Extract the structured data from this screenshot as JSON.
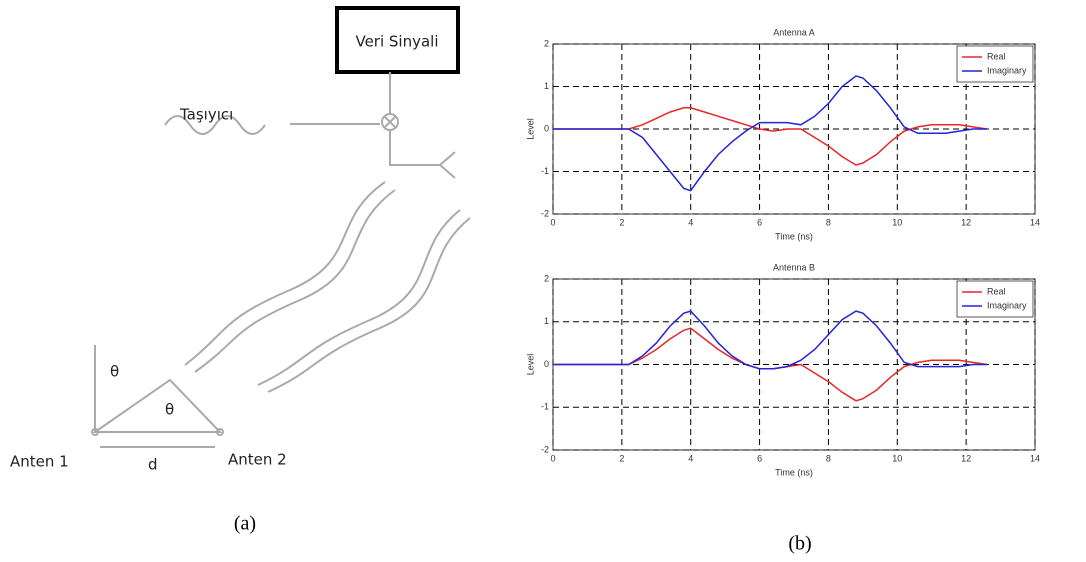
{
  "diagram": {
    "box_label": "Veri Sinyali",
    "carrier_label": "Taşıyıcı",
    "angle_labels": [
      "θ",
      "θ"
    ],
    "antenna_labels": [
      "Anten 1",
      "Anten 2"
    ],
    "distance_label": "d"
  },
  "captions": [
    "(a)",
    "(b)"
  ],
  "chart_data": [
    {
      "type": "line",
      "title": "Antenna A",
      "x_label": "Time (ns)",
      "y_label": "Level",
      "x": [
        0,
        2.2,
        2.6,
        3.0,
        3.4,
        3.8,
        4.0,
        4.4,
        4.8,
        5.2,
        5.6,
        6.0,
        6.4,
        6.8,
        7.2,
        7.6,
        8.0,
        8.4,
        8.8,
        9.0,
        9.4,
        9.8,
        10.2,
        10.6,
        11.0,
        11.4,
        11.8,
        12.2,
        12.6
      ],
      "series": [
        {
          "name": "Real",
          "color": "#e8262a",
          "values": [
            0,
            0,
            0.1,
            0.25,
            0.4,
            0.5,
            0.5,
            0.4,
            0.3,
            0.2,
            0.1,
            0,
            -0.05,
            0,
            0,
            -0.2,
            -0.4,
            -0.65,
            -0.85,
            -0.8,
            -0.6,
            -0.3,
            -0.05,
            0.05,
            0.1,
            0.1,
            0.1,
            0.05,
            0
          ]
        },
        {
          "name": "Imaginary",
          "color": "#2424d8",
          "values": [
            0,
            0,
            -0.2,
            -0.6,
            -1.0,
            -1.4,
            -1.45,
            -1.0,
            -0.6,
            -0.3,
            -0.05,
            0.15,
            0.15,
            0.15,
            0.1,
            0.3,
            0.6,
            1.0,
            1.25,
            1.2,
            0.9,
            0.5,
            0.05,
            -0.1,
            -0.1,
            -0.1,
            -0.05,
            0,
            0
          ]
        }
      ],
      "xlim": [
        0,
        14
      ],
      "xticks": [
        0,
        2,
        4,
        6,
        8,
        10,
        12,
        14
      ],
      "ylim": [
        -2,
        2
      ],
      "yticks": [
        -2,
        -1,
        0,
        1,
        2
      ],
      "grid": true,
      "legend": "upper right"
    },
    {
      "type": "line",
      "title": "Antenna B",
      "x_label": "Time (ns)",
      "y_label": "Level",
      "x": [
        0,
        2.2,
        2.6,
        3.0,
        3.4,
        3.8,
        4.0,
        4.4,
        4.8,
        5.2,
        5.6,
        6.0,
        6.4,
        6.8,
        7.2,
        7.6,
        8.0,
        8.4,
        8.8,
        9.0,
        9.4,
        9.8,
        10.2,
        10.6,
        11.0,
        11.4,
        11.8,
        12.2,
        12.6
      ],
      "series": [
        {
          "name": "Real",
          "color": "#e8262a",
          "values": [
            0,
            0,
            0.15,
            0.35,
            0.6,
            0.8,
            0.85,
            0.6,
            0.35,
            0.15,
            0,
            -0.1,
            -0.1,
            -0.05,
            0,
            -0.2,
            -0.4,
            -0.65,
            -0.85,
            -0.8,
            -0.6,
            -0.3,
            -0.05,
            0.05,
            0.1,
            0.1,
            0.1,
            0.05,
            0
          ]
        },
        {
          "name": "Imaginary",
          "color": "#2424d8",
          "values": [
            0,
            0,
            0.2,
            0.5,
            0.9,
            1.2,
            1.25,
            0.9,
            0.5,
            0.2,
            0,
            -0.1,
            -0.1,
            -0.05,
            0.1,
            0.35,
            0.7,
            1.05,
            1.25,
            1.2,
            0.9,
            0.5,
            0.05,
            -0.05,
            -0.05,
            -0.05,
            -0.05,
            0,
            0
          ]
        }
      ],
      "xlim": [
        0,
        14
      ],
      "xticks": [
        0,
        2,
        4,
        6,
        8,
        10,
        12,
        14
      ],
      "ylim": [
        -2,
        2
      ],
      "yticks": [
        -2,
        -1,
        0,
        1,
        2
      ],
      "grid": true,
      "legend": "upper right"
    }
  ]
}
